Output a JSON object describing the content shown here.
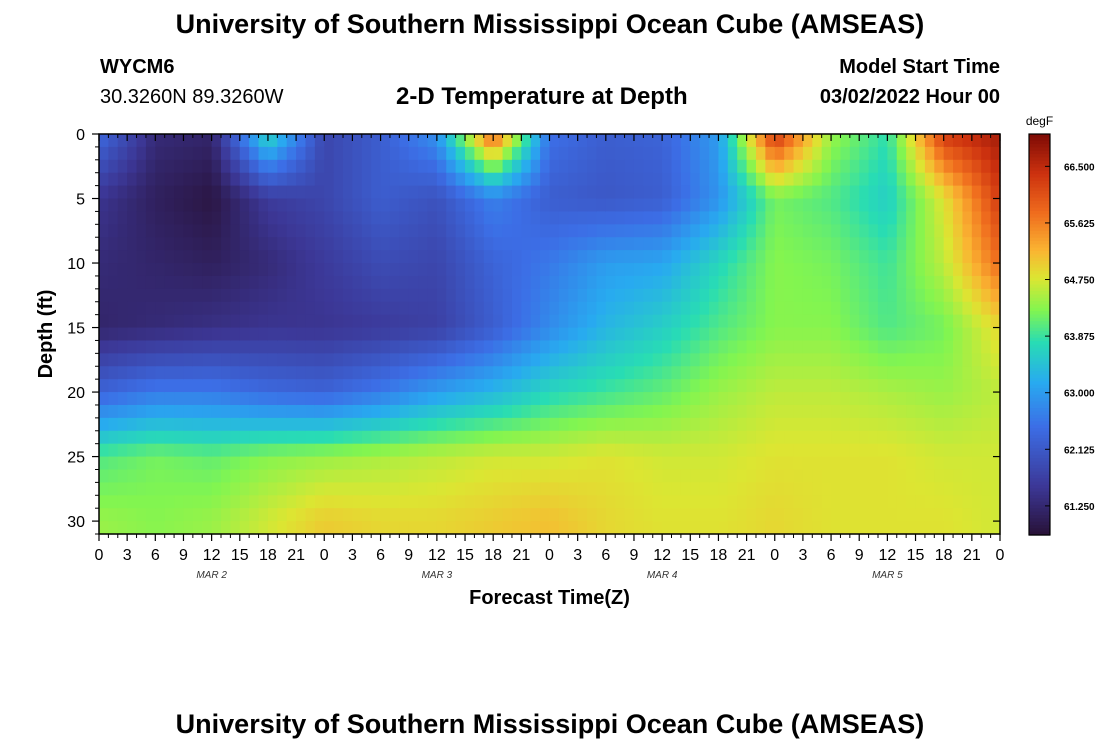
{
  "titles": {
    "main": "University of Southern Mississippi Ocean Cube (AMSEAS)",
    "repeat": "University of Southern Mississippi Ocean Cube (AMSEAS)"
  },
  "station": {
    "id": "WYCM6",
    "coords": "30.3260N  89.3260W"
  },
  "model_start": {
    "label": "Model Start Time",
    "value": "03/02/2022 Hour 00"
  },
  "chart_data": {
    "type": "heatmap",
    "title": "2-D Temperature at Depth",
    "xlabel": "Forecast Time(Z)",
    "ylabel": "Depth (ft)",
    "x_ticks": [
      "0",
      "3",
      "6",
      "9",
      "12",
      "15",
      "18",
      "21",
      "0",
      "3",
      "6",
      "9",
      "12",
      "15",
      "18",
      "21",
      "0",
      "3",
      "6",
      "9",
      "12",
      "15",
      "18",
      "21",
      "0",
      "3",
      "6",
      "9",
      "12",
      "15",
      "18",
      "21",
      "0"
    ],
    "x_range_hours": [
      0,
      96
    ],
    "day_labels": [
      {
        "label": "MAR 2",
        "hour": 12
      },
      {
        "label": "MAR 3",
        "hour": 36
      },
      {
        "label": "MAR 4",
        "hour": 60
      },
      {
        "label": "MAR 5",
        "hour": 84
      }
    ],
    "y_ticks": [
      "0",
      "5",
      "10",
      "15",
      "20",
      "25",
      "30"
    ],
    "y_range": [
      0,
      31
    ],
    "y_inverted": true,
    "colorbar": {
      "unit": "degF",
      "tick_labels": [
        "66.500",
        "65.625",
        "64.750",
        "63.875",
        "63.000",
        "62.125",
        "61.250"
      ],
      "range": [
        60.8,
        67.0
      ]
    },
    "grid": false,
    "depth_levels_ft": [
      0,
      5,
      10,
      15,
      20,
      25,
      30
    ],
    "time_samples_hours": [
      0,
      6,
      12,
      18,
      24,
      30,
      36,
      42,
      48,
      54,
      60,
      66,
      72,
      78,
      84,
      90,
      96
    ],
    "temperature_degF": [
      [
        62.4,
        61.3,
        61.2,
        63.8,
        61.8,
        62.2,
        62.9,
        66.0,
        62.5,
        62.2,
        62.3,
        63.0,
        66.4,
        64.4,
        63.8,
        66.3,
        66.7
      ],
      [
        61.5,
        61.1,
        60.9,
        61.6,
        61.8,
        62.2,
        62.0,
        62.7,
        62.2,
        62.1,
        62.2,
        62.9,
        64.2,
        64.0,
        63.6,
        64.8,
        66.3
      ],
      [
        61.3,
        61.2,
        61.1,
        61.3,
        61.6,
        61.9,
        61.8,
        62.3,
        62.6,
        63.0,
        63.1,
        63.7,
        64.3,
        64.2,
        63.9,
        64.6,
        65.8
      ],
      [
        61.2,
        61.3,
        61.4,
        61.5,
        61.5,
        61.6,
        61.7,
        62.2,
        62.8,
        63.3,
        63.6,
        64.0,
        64.3,
        64.3,
        64.0,
        64.2,
        64.9
      ],
      [
        62.3,
        62.6,
        62.6,
        62.4,
        62.3,
        62.6,
        63.0,
        63.3,
        63.7,
        63.9,
        64.1,
        64.4,
        64.6,
        64.6,
        64.5,
        64.4,
        64.6
      ],
      [
        64.0,
        64.2,
        64.1,
        64.3,
        64.4,
        64.5,
        64.6,
        64.7,
        64.7,
        64.8,
        64.7,
        64.7,
        64.8,
        64.8,
        64.8,
        64.7,
        64.7
      ],
      [
        64.4,
        64.3,
        64.4,
        64.7,
        65.0,
        64.9,
        64.9,
        65.0,
        65.1,
        64.9,
        64.8,
        64.8,
        64.9,
        64.8,
        64.8,
        64.8,
        64.7
      ]
    ]
  }
}
